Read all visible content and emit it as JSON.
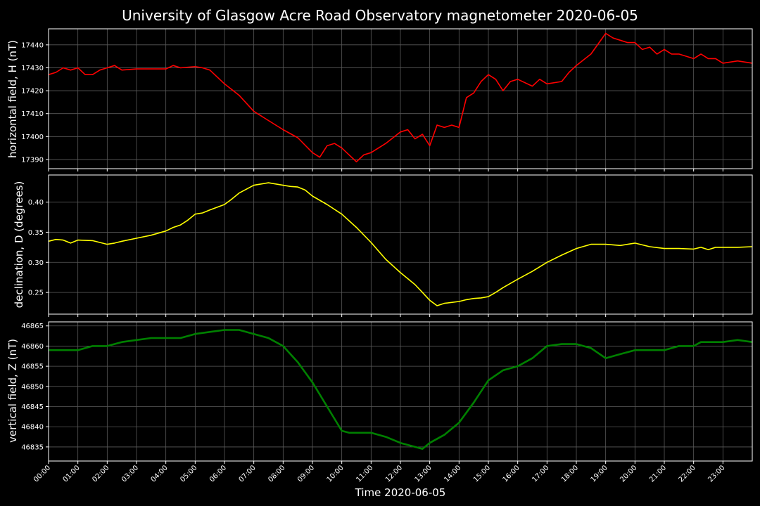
{
  "chart_data": [
    {
      "type": "line",
      "title": "University of Glasgow Acre Road Observatory magnetometer 2020-06-05",
      "ylabel": "horizontal field, H (nT)",
      "ylim": [
        17386,
        17447
      ],
      "yticks": [
        17390,
        17400,
        17410,
        17420,
        17430,
        17440
      ],
      "grid": true,
      "series": [
        {
          "color": "#ff0000",
          "x": [
            "00:00",
            "00:15",
            "00:30",
            "00:45",
            "01:00",
            "01:15",
            "01:30",
            "01:45",
            "02:00",
            "02:15",
            "02:30",
            "03:00",
            "03:30",
            "04:00",
            "04:15",
            "04:30",
            "05:00",
            "05:15",
            "05:30",
            "06:00",
            "06:30",
            "07:00",
            "07:30",
            "08:00",
            "08:30",
            "09:00",
            "09:15",
            "09:30",
            "09:45",
            "10:00",
            "10:15",
            "10:30",
            "10:45",
            "11:00",
            "11:30",
            "12:00",
            "12:15",
            "12:30",
            "12:45",
            "13:00",
            "13:15",
            "13:30",
            "13:45",
            "14:00",
            "14:15",
            "14:30",
            "14:45",
            "15:00",
            "15:15",
            "15:30",
            "15:45",
            "16:00",
            "16:30",
            "16:45",
            "17:00",
            "17:30",
            "17:45",
            "18:00",
            "18:30",
            "19:00",
            "19:15",
            "19:30",
            "19:45",
            "20:00",
            "20:15",
            "20:30",
            "20:45",
            "21:00",
            "21:15",
            "21:30",
            "21:45",
            "22:00",
            "22:15",
            "22:30",
            "22:45",
            "23:00",
            "23:30",
            "24:00"
          ],
          "y": [
            17427,
            17428,
            17430,
            17429,
            17430,
            17427,
            17427,
            17429,
            17430,
            17431,
            17429,
            17429.5,
            17429.5,
            17429.5,
            17431,
            17430,
            17430.5,
            17430,
            17429,
            17423,
            17418,
            17411,
            17407,
            17403,
            17399.5,
            17393,
            17391,
            17396,
            17397,
            17395,
            17392,
            17389,
            17392,
            17393,
            17397,
            17402,
            17403,
            17399,
            17401,
            17396,
            17405,
            17404,
            17405,
            17404,
            17417,
            17419,
            17424,
            17427,
            17425,
            17420,
            17424,
            17425,
            17422,
            17425,
            17423,
            17424,
            17428,
            17431,
            17436,
            17445,
            17443,
            17442,
            17441,
            17441,
            17438,
            17439,
            17436,
            17438,
            17436,
            17436,
            17435,
            17434,
            17436,
            17434,
            17434,
            17432,
            17433,
            17432
          ]
        }
      ]
    },
    {
      "type": "line",
      "ylabel": "declination, D (degrees)",
      "ylim": [
        0.214,
        0.445
      ],
      "yticks": [
        0.25,
        0.3,
        0.35,
        0.4
      ],
      "grid": true,
      "series": [
        {
          "color": "#ffff00",
          "x": [
            "00:00",
            "00:15",
            "00:30",
            "00:45",
            "01:00",
            "01:30",
            "02:00",
            "02:15",
            "02:30",
            "03:00",
            "03:30",
            "04:00",
            "04:15",
            "04:30",
            "04:45",
            "05:00",
            "05:15",
            "05:30",
            "06:00",
            "06:15",
            "06:30",
            "07:00",
            "07:30",
            "08:00",
            "08:15",
            "08:30",
            "08:45",
            "09:00",
            "09:30",
            "10:00",
            "10:30",
            "11:00",
            "11:30",
            "12:00",
            "12:30",
            "12:45",
            "13:00",
            "13:15",
            "13:30",
            "14:00",
            "14:15",
            "14:30",
            "14:45",
            "15:00",
            "15:15",
            "15:30",
            "16:00",
            "16:30",
            "17:00",
            "17:30",
            "18:00",
            "18:30",
            "19:00",
            "19:30",
            "20:00",
            "20:30",
            "21:00",
            "21:30",
            "22:00",
            "22:15",
            "22:30",
            "22:45",
            "23:00",
            "23:30",
            "24:00"
          ],
          "y": [
            0.335,
            0.338,
            0.337,
            0.332,
            0.337,
            0.336,
            0.33,
            0.332,
            0.335,
            0.34,
            0.345,
            0.352,
            0.358,
            0.362,
            0.37,
            0.38,
            0.382,
            0.387,
            0.396,
            0.405,
            0.415,
            0.428,
            0.432,
            0.428,
            0.426,
            0.425,
            0.42,
            0.41,
            0.396,
            0.38,
            0.358,
            0.333,
            0.305,
            0.283,
            0.263,
            0.25,
            0.237,
            0.228,
            0.232,
            0.235,
            0.238,
            0.24,
            0.241,
            0.243,
            0.25,
            0.258,
            0.272,
            0.285,
            0.3,
            0.312,
            0.323,
            0.33,
            0.33,
            0.328,
            0.332,
            0.326,
            0.323,
            0.323,
            0.322,
            0.325,
            0.321,
            0.325,
            0.325,
            0.325,
            0.326
          ]
        }
      ]
    },
    {
      "type": "line",
      "ylabel": "vertical field, Z (nT)",
      "xlabel": "Time 2020-06-05",
      "xticks": [
        "00:00",
        "01:00",
        "02:00",
        "03:00",
        "04:00",
        "05:00",
        "06:00",
        "07:00",
        "08:00",
        "09:00",
        "10:00",
        "11:00",
        "12:00",
        "13:00",
        "14:00",
        "15:00",
        "16:00",
        "17:00",
        "18:00",
        "19:00",
        "20:00",
        "21:00",
        "22:00",
        "23:00"
      ],
      "ylim": [
        46831.5,
        46866
      ],
      "yticks": [
        46835,
        46840,
        46845,
        46850,
        46855,
        46860,
        46865
      ],
      "grid": true,
      "series": [
        {
          "color": "#008000",
          "x": [
            "00:00",
            "00:30",
            "01:00",
            "01:30",
            "02:00",
            "02:30",
            "03:00",
            "03:30",
            "04:00",
            "04:30",
            "05:00",
            "05:30",
            "06:00",
            "06:30",
            "07:00",
            "07:30",
            "08:00",
            "08:30",
            "09:00",
            "09:30",
            "10:00",
            "10:15",
            "10:30",
            "11:00",
            "11:30",
            "12:00",
            "12:30",
            "12:45",
            "13:00",
            "13:30",
            "14:00",
            "14:30",
            "15:00",
            "15:30",
            "16:00",
            "16:30",
            "17:00",
            "17:30",
            "18:00",
            "18:30",
            "19:00",
            "19:30",
            "20:00",
            "20:30",
            "21:00",
            "21:30",
            "22:00",
            "22:15",
            "22:30",
            "22:45",
            "23:00",
            "23:30",
            "24:00"
          ],
          "y": [
            46859,
            46859,
            46859,
            46860,
            46860,
            46861,
            46861.5,
            46862,
            46862,
            46862,
            46863,
            46863.5,
            46864,
            46864,
            46863,
            46862,
            46860,
            46856,
            46851,
            46845,
            46839,
            46838.5,
            46838.5,
            46838.5,
            46837.5,
            46836,
            46835,
            46834.5,
            46836,
            46838,
            46841,
            46846,
            46851.5,
            46854,
            46855,
            46857,
            46860,
            46860.5,
            46860.5,
            46859.5,
            46857,
            46858,
            46859,
            46859,
            46859,
            46860,
            46860,
            46861,
            46861,
            46861,
            46861,
            46861.5,
            46861
          ]
        }
      ]
    }
  ]
}
